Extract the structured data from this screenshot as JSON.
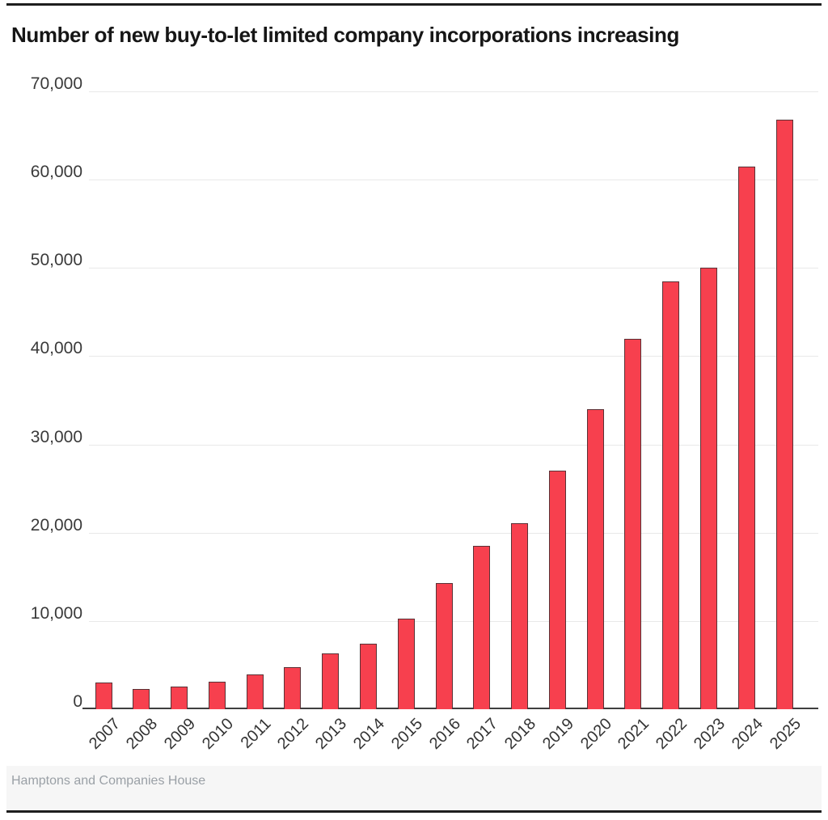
{
  "title": "Number of new buy-to-let limited company incorporations increasing",
  "source": "Hamptons and Companies House",
  "colors": {
    "bar_fill": "#f7404e",
    "bar_stroke": "#5a3236",
    "gridline": "#e9e9e9",
    "axis_line": "#3f3f3f",
    "title_text": "#161616",
    "tick_text": "#3a3a3a",
    "source_text": "#9aa0a6",
    "rule": "#1e1e1e",
    "footer_band": "#f6f6f6",
    "background": "#ffffff"
  },
  "chart_data": {
    "type": "bar",
    "title": "Number of new buy-to-let limited company incorporations increasing",
    "categories": [
      "2007",
      "2008",
      "2009",
      "2010",
      "2011",
      "2012",
      "2013",
      "2014",
      "2015",
      "2016",
      "2017",
      "2018",
      "2019",
      "2020",
      "2021",
      "2022",
      "2023",
      "2024",
      "2025"
    ],
    "values": [
      3000,
      2300,
      2600,
      3100,
      3900,
      4800,
      6300,
      7400,
      10300,
      14300,
      18500,
      21100,
      27000,
      34000,
      42000,
      48500,
      50000,
      61500,
      66800
    ],
    "xlabel": "",
    "ylabel": "",
    "ylim": [
      0,
      70000
    ],
    "yticks": [
      0,
      10000,
      20000,
      30000,
      40000,
      50000,
      60000,
      70000
    ],
    "grid": true,
    "legend": false,
    "x_tick_rotation": -45,
    "source": "Hamptons and Companies House"
  }
}
